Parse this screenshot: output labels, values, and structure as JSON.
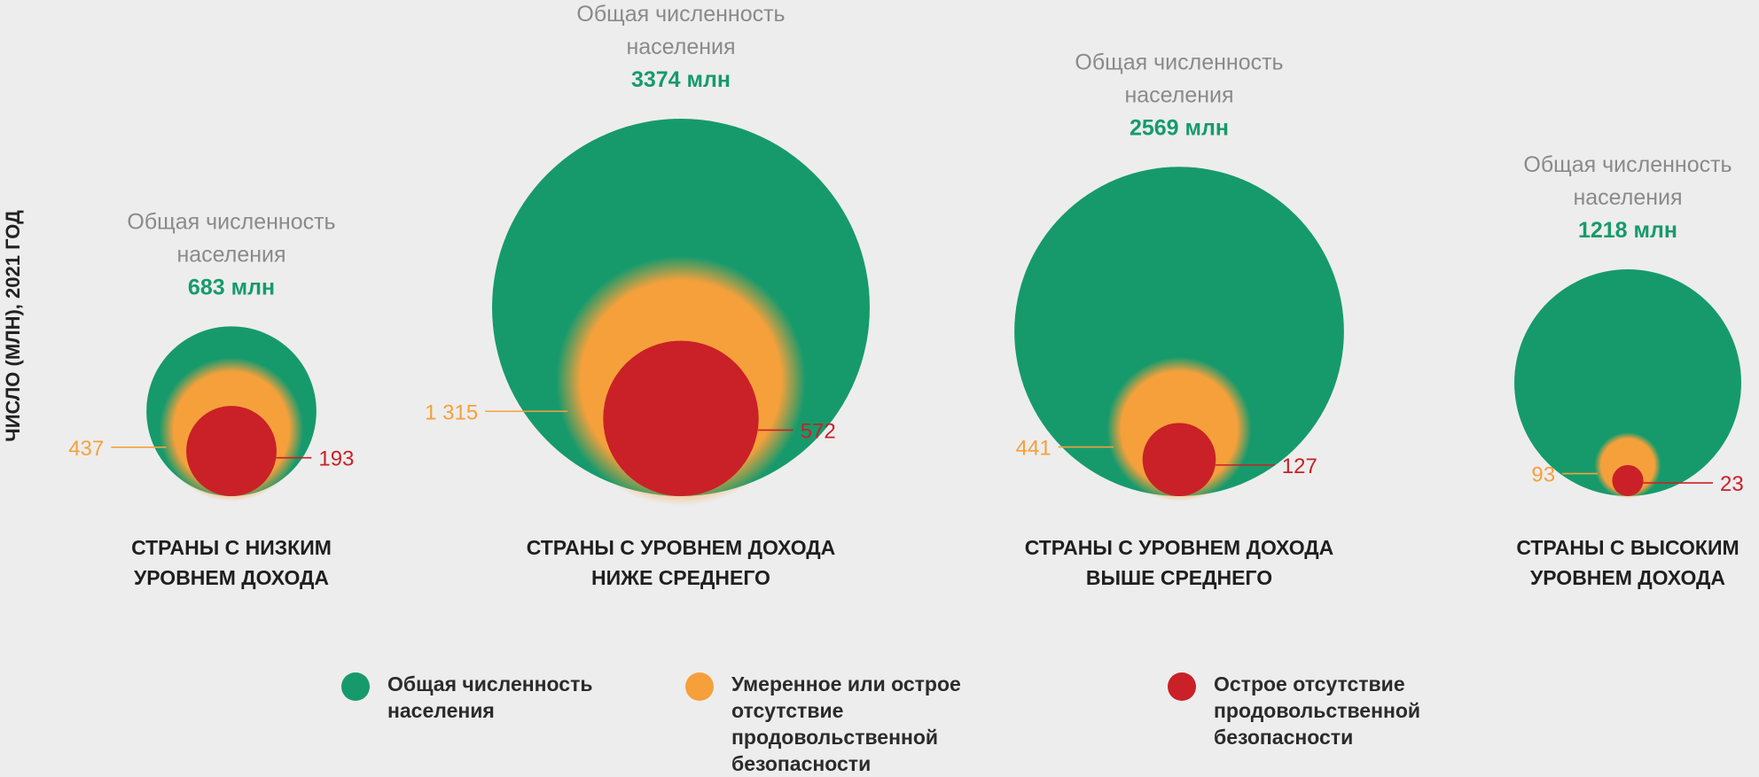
{
  "colors": {
    "total": "#169a6c",
    "moderate": "#f6a03c",
    "severe": "#c92127",
    "grey_text": "#8a8a8a",
    "green_text": "#169a6c",
    "axis_text": "#222222"
  },
  "chart_data": {
    "type": "bubble",
    "ylabel": "ЧИСЛО (МЛН), 2021 ГОД",
    "total_caption": [
      "Общая численность",
      "населения"
    ],
    "groups": [
      {
        "name_lines": [
          "СТРАНЫ С НИЗКИМ",
          "УРОВНЕМ ДОХОДА"
        ],
        "total": 683,
        "total_label": "683 млн",
        "moderate_or_severe": 437,
        "moderate_label": "437",
        "severe": 193,
        "severe_label": "193"
      },
      {
        "name_lines": [
          "СТРАНЫ С УРОВНЕМ ДОХОДА",
          "НИЖЕ СРЕДНЕГО"
        ],
        "total": 3374,
        "total_label": "3374 млн",
        "moderate_or_severe": 1315,
        "moderate_label": "1 315",
        "severe": 572,
        "severe_label": "572"
      },
      {
        "name_lines": [
          "СТРАНЫ С УРОВНЕМ ДОХОДА",
          "ВЫШЕ СРЕДНЕГО"
        ],
        "total": 2569,
        "total_label": "2569 млн",
        "moderate_or_severe": 441,
        "moderate_label": "441",
        "severe": 127,
        "severe_label": "127"
      },
      {
        "name_lines": [
          "СТРАНЫ С ВЫСОКИМ",
          "УРОВНЕМ ДОХОДА"
        ],
        "total": 1218,
        "total_label": "1218 млн",
        "moderate_or_severe": 93,
        "moderate_label": "93",
        "severe": 23,
        "severe_label": "23"
      }
    ]
  },
  "legend": [
    {
      "key": "total",
      "lines": [
        "Общая численность",
        "населения"
      ]
    },
    {
      "key": "moderate",
      "lines": [
        "Умеренное или острое отсутствие",
        "продовольственной безопасности"
      ]
    },
    {
      "key": "severe",
      "lines": [
        "Острое отсутствие",
        "продовольственной безопасности"
      ]
    }
  ]
}
